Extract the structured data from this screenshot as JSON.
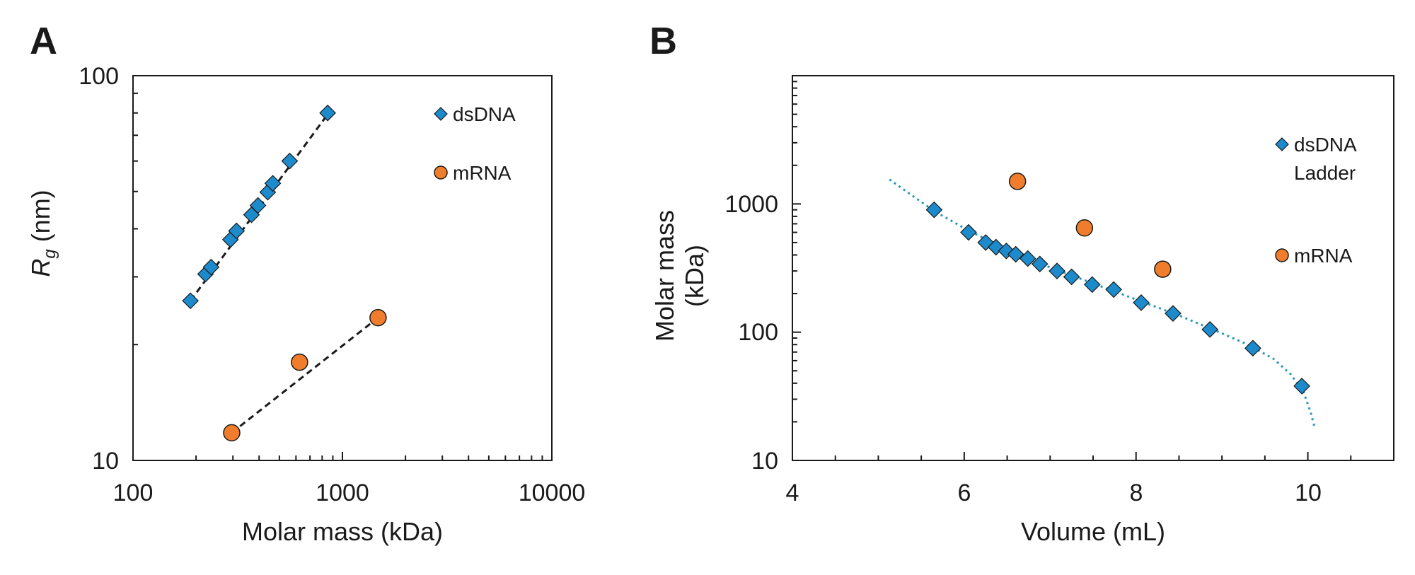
{
  "chart_data": [
    {
      "panel": "A",
      "type": "scatter",
      "title": "",
      "xlabel": "Molar mass (kDa)",
      "ylabel": "R_g (nm)",
      "ylabel_symbol": "R",
      "ylabel_sub": "g",
      "ylabel_unit": " (nm)",
      "xscale": "log",
      "yscale": "log",
      "xlim": [
        100,
        10000
      ],
      "ylim": [
        10,
        100
      ],
      "xticks": [
        "100",
        "1000",
        "10000"
      ],
      "yticks": [
        "10",
        "100"
      ],
      "legend_position": "top-right",
      "series": [
        {
          "name": "dsDNA",
          "marker": "diamond",
          "color": "#1c8acb",
          "x": [
            188,
            222,
            236,
            292,
            312,
            368,
            395,
            440,
            465,
            560,
            850
          ],
          "y": [
            26.0,
            30.5,
            31.8,
            37.5,
            39.5,
            43.5,
            46.0,
            49.8,
            52.5,
            60.0,
            80.0
          ],
          "fit": {
            "x": [
              188,
              860
            ],
            "y": [
              26.0,
              80.0
            ]
          }
        },
        {
          "name": "mRNA",
          "marker": "circle",
          "color": "#ef7d2b",
          "x": [
            296,
            624,
            1480
          ],
          "y": [
            11.8,
            18.0,
            23.5
          ],
          "fit": {
            "x": [
              296,
              1480
            ],
            "y": [
              11.8,
              23.5
            ]
          }
        }
      ]
    },
    {
      "panel": "B",
      "type": "scatter",
      "title": "",
      "xlabel": "Volume (mL)",
      "ylabel_line1": "Molar mass",
      "ylabel_line2": "(kDa)",
      "xscale": "linear",
      "yscale": "log",
      "xlim": [
        4,
        11
      ],
      "ylim": [
        10,
        10000
      ],
      "xticks": [
        "4",
        "6",
        "8",
        "10"
      ],
      "yticks": [
        "10",
        "100",
        "1000"
      ],
      "legend_position": "right",
      "series": [
        {
          "name": "dsDNA Ladder",
          "name_line1": "dsDNA",
          "name_line2": "Ladder",
          "marker": "diamond",
          "color": "#1c8acb",
          "x": [
            5.65,
            6.05,
            6.25,
            6.37,
            6.49,
            6.6,
            6.74,
            6.88,
            7.08,
            7.25,
            7.49,
            7.74,
            8.06,
            8.43,
            8.86,
            9.36,
            9.93
          ],
          "y": [
            900,
            600,
            500,
            460,
            430,
            405,
            375,
            340,
            300,
            270,
            235,
            215,
            170,
            140,
            105,
            75,
            38
          ]
        },
        {
          "name": "mRNA",
          "marker": "circle",
          "color": "#ef7d2b",
          "x": [
            6.62,
            7.4,
            8.31
          ],
          "y": [
            1500,
            650,
            310
          ]
        }
      ],
      "fit_curve": {
        "color": "#2b97b8",
        "x": [
          5.13,
          5.65,
          6.05,
          6.5,
          7.0,
          7.5,
          8.0,
          8.5,
          9.0,
          9.3,
          9.6,
          9.8,
          9.95,
          10.03,
          10.08
        ],
        "y": [
          1550,
          880,
          620,
          440,
          320,
          240,
          180,
          135,
          98,
          80,
          62,
          47,
          34,
          24,
          18
        ]
      }
    }
  ]
}
